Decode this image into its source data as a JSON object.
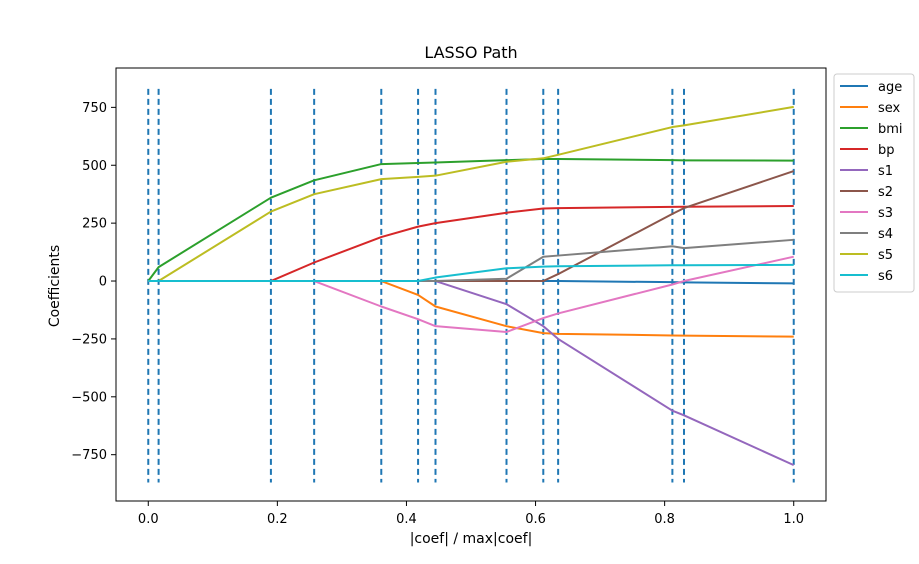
{
  "chart_data": {
    "type": "line",
    "title": "LASSO Path",
    "xlabel": "|coef| / max|coef|",
    "ylabel": "Coefficients",
    "xlim": [
      -0.05,
      1.05
    ],
    "ylim": [
      -950,
      920
    ],
    "xticks": [
      0.0,
      0.2,
      0.4,
      0.6,
      0.8,
      1.0
    ],
    "xtick_labels": [
      "0.0",
      "0.2",
      "0.4",
      "0.6",
      "0.8",
      "1.0"
    ],
    "yticks": [
      -750,
      -500,
      -250,
      0,
      250,
      500,
      750
    ],
    "ytick_labels": [
      "−750",
      "−500",
      "−250",
      "0",
      "250",
      "500",
      "750"
    ],
    "grid": false,
    "legend_position": "outside-right",
    "x": [
      0.0,
      0.016,
      0.19,
      0.257,
      0.361,
      0.418,
      0.445,
      0.555,
      0.612,
      0.635,
      0.812,
      0.83,
      1.0
    ],
    "series": [
      {
        "name": "age",
        "color": "#1f77b4",
        "values": [
          0,
          0,
          0,
          0,
          0,
          0,
          0,
          0,
          0,
          0,
          -5,
          -6,
          -10
        ]
      },
      {
        "name": "sex",
        "color": "#ff7f0e",
        "values": [
          0,
          0,
          0,
          0,
          0,
          -60,
          -110,
          -195,
          -225,
          -228,
          -235,
          -236,
          -240
        ]
      },
      {
        "name": "bmi",
        "color": "#2ca02c",
        "values": [
          0,
          60,
          360,
          435,
          505,
          510,
          512,
          522,
          527,
          527,
          522,
          521,
          520
        ]
      },
      {
        "name": "bp",
        "color": "#d62728",
        "values": [
          0,
          0,
          0,
          80,
          190,
          235,
          250,
          295,
          313,
          315,
          320,
          321,
          324
        ]
      },
      {
        "name": "s1",
        "color": "#9467bd",
        "values": [
          0,
          0,
          0,
          0,
          0,
          0,
          0,
          -100,
          -195,
          -250,
          -560,
          -580,
          -795
        ]
      },
      {
        "name": "s2",
        "color": "#8c564b",
        "values": [
          0,
          0,
          0,
          0,
          0,
          0,
          0,
          0,
          0,
          30,
          290,
          315,
          475
        ]
      },
      {
        "name": "s3",
        "color": "#e377c2",
        "values": [
          0,
          0,
          0,
          0,
          -110,
          -165,
          -195,
          -220,
          -160,
          -140,
          -15,
          0,
          105
        ]
      },
      {
        "name": "s4",
        "color": "#7f7f7f",
        "values": [
          0,
          0,
          0,
          0,
          0,
          0,
          0,
          10,
          105,
          110,
          150,
          142,
          178
        ]
      },
      {
        "name": "s5",
        "color": "#bcbd22",
        "values": [
          0,
          0,
          300,
          375,
          440,
          450,
          455,
          515,
          530,
          545,
          665,
          672,
          752
        ]
      },
      {
        "name": "s6",
        "color": "#17becf",
        "values": [
          0,
          0,
          0,
          0,
          0,
          0,
          15,
          55,
          62,
          64,
          68,
          68,
          70
        ]
      }
    ],
    "vlines": {
      "x": [
        0.0,
        0.016,
        0.19,
        0.257,
        0.361,
        0.418,
        0.445,
        0.555,
        0.612,
        0.635,
        0.812,
        0.83,
        1.0
      ],
      "ymin": -870,
      "ymax": 830,
      "color": "#1f77b4",
      "style": "dashed"
    }
  }
}
